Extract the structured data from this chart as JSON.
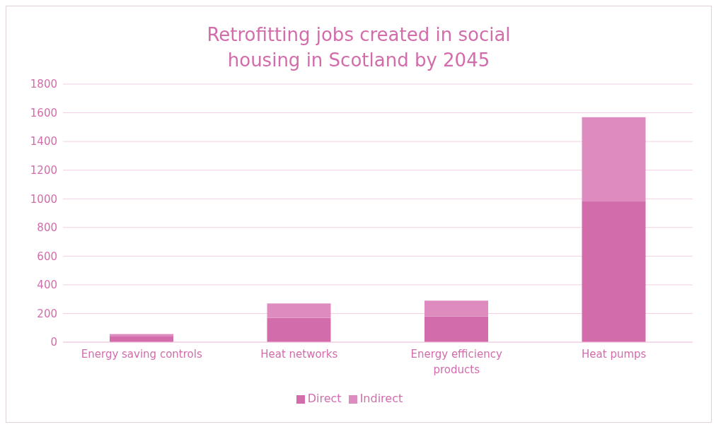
{
  "chart_data": {
    "type": "bar",
    "title": "Retrofitting jobs created in social housing in Scotland by 2045",
    "categories": [
      "Energy saving controls",
      "Heat networks",
      "Energy efficiency products",
      "Heat pumps"
    ],
    "series": [
      {
        "name": "Direct",
        "color": "#d36cab",
        "values": [
          40,
          170,
          180,
          985
        ]
      },
      {
        "name": "Indirect",
        "color": "#de8cc0",
        "values": [
          17,
          100,
          110,
          585
        ]
      }
    ],
    "stacked": true,
    "ylim": [
      0,
      1800
    ],
    "yticks": [
      0,
      200,
      400,
      600,
      800,
      1000,
      1200,
      1400,
      1600,
      1800
    ],
    "grid": "y",
    "legend": "bottom"
  }
}
